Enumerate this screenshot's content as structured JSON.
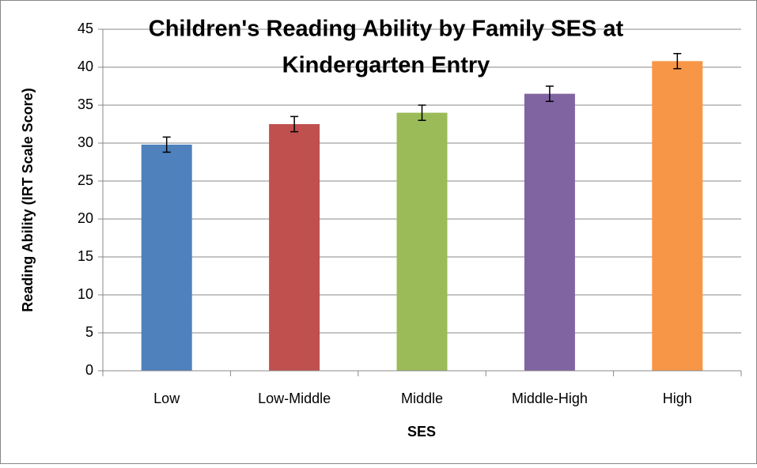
{
  "chart_data": {
    "type": "bar",
    "title": "Children's Reading Ability by Family SES at Kindergarten Entry",
    "title_lines": [
      "Children's Reading Ability by Family SES at",
      "Kindergarten Entry"
    ],
    "x_label": "SES",
    "y_label": "Reading Ability (IRT Scale Score)",
    "categories": [
      "Low",
      "Low-Middle",
      "Middle",
      "Middle-High",
      "High"
    ],
    "values": [
      29.8,
      32.5,
      34.0,
      36.5,
      40.8
    ],
    "errors": [
      1.0,
      1.0,
      1.0,
      1.0,
      1.0
    ],
    "colors": [
      "#4f81bd",
      "#c0504d",
      "#9bbb59",
      "#8064a2",
      "#f79646"
    ],
    "ylim": [
      0,
      45
    ],
    "yticks": [
      0,
      5,
      10,
      15,
      20,
      25,
      30,
      35,
      40,
      45
    ],
    "grid": true
  }
}
